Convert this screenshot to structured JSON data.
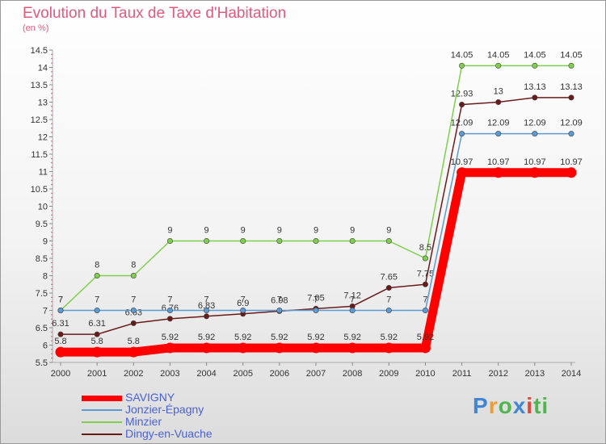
{
  "chart_data": {
    "type": "line",
    "title": "Evolution du Taux de Taxe d'Habitation",
    "unit": "(en %)",
    "x": [
      "2000",
      "2001",
      "2002",
      "2003",
      "2004",
      "2005",
      "2006",
      "2007",
      "2008",
      "2009",
      "2010",
      "2011",
      "2012",
      "2013",
      "2014"
    ],
    "y_ticks": [
      "5.5",
      "6",
      "6.5",
      "7",
      "7.5",
      "8",
      "8.5",
      "9",
      "9.5",
      "10",
      "10.5",
      "11",
      "11.5",
      "12",
      "12.5",
      "13",
      "13.5",
      "14",
      "14.5"
    ],
    "ylim": [
      5.5,
      14.5
    ],
    "grid": false,
    "legend_position": "bottom-left",
    "series": [
      {
        "name": "Dingy-en-Vuache",
        "color": "#6b1a1a",
        "values": [
          6.31,
          6.31,
          6.63,
          6.76,
          6.83,
          6.9,
          6.98,
          7.05,
          7.12,
          7.65,
          7.75,
          12.93,
          13,
          13.13,
          13.13
        ],
        "labels": [
          "6.31",
          "6.31",
          "6.63",
          "6.76",
          "6.83",
          "6.9",
          "6.98",
          "7.05",
          "7.12",
          "7.65",
          "7.75",
          "12.93",
          "13",
          "13.13",
          "13.13"
        ]
      },
      {
        "name": "Minzier",
        "color": "#7ed04b",
        "values": [
          7,
          8,
          8,
          9,
          9,
          9,
          9,
          9,
          9,
          9,
          8.5,
          14.05,
          14.05,
          14.05,
          14.05
        ],
        "labels": [
          "7",
          "8",
          "8",
          "9",
          "9",
          "9",
          "9",
          "9",
          "9",
          "9",
          "8.5",
          "14.05",
          "14.05",
          "14.05",
          "14.05"
        ]
      },
      {
        "name": "Jonzier-Épagny",
        "color": "#5b9bd5",
        "values": [
          7,
          7,
          7,
          7,
          7,
          7,
          7,
          7,
          7,
          7,
          7,
          12.09,
          12.09,
          12.09,
          12.09
        ],
        "labels": [
          "7",
          "7",
          "7",
          "7",
          "7",
          "7",
          "7",
          "7",
          "7",
          "7",
          "7",
          "12.09",
          "12.09",
          "12.09",
          "12.09"
        ]
      },
      {
        "name": "SAVIGNY",
        "color": "#ff0000",
        "values": [
          5.8,
          5.8,
          5.8,
          5.92,
          5.92,
          5.92,
          5.92,
          5.92,
          5.92,
          5.92,
          5.92,
          10.97,
          10.97,
          10.97,
          10.97
        ],
        "labels": [
          "5.8",
          "5.8",
          "5.8",
          "5.92",
          "5.92",
          "5.92",
          "5.92",
          "5.92",
          "5.92",
          "5.92",
          "5.92",
          "10.97",
          "10.97",
          "10.97",
          "10.97"
        ]
      }
    ],
    "legend": [
      {
        "name": "SAVIGNY",
        "color": "#ff0000"
      },
      {
        "name": "Jonzier-Épagny",
        "color": "#5b9bd5"
      },
      {
        "name": "Minzier",
        "color": "#7ed04b"
      },
      {
        "name": "Dingy-en-Vuache",
        "color": "#6b1a1a"
      }
    ]
  },
  "brand": {
    "letters": [
      "P",
      "r",
      "o",
      "x",
      "i",
      "t",
      "i"
    ]
  }
}
